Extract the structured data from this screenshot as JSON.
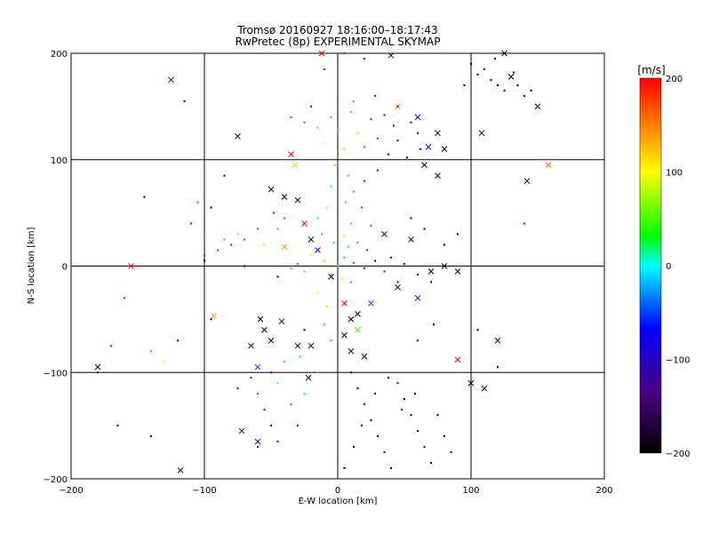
{
  "chart_data": {
    "type": "scatter",
    "title": "Tromsø 20160927 18:16:00–18:17:43",
    "subtitle": "RwPretec (8p) EXPERIMENTAL SKYMAP",
    "xlabel": "E-W location [km]",
    "ylabel": "N-S location [km]",
    "xlim": [
      -200,
      200
    ],
    "ylim": [
      -200,
      200
    ],
    "xticks": [
      -200,
      -100,
      0,
      100,
      200
    ],
    "yticks": [
      -200,
      -100,
      0,
      100,
      200
    ],
    "grid": true,
    "colorbar": {
      "label": "[m/s]",
      "range": [
        -200,
        200
      ],
      "ticks": [
        200,
        100,
        0,
        -100,
        -200
      ],
      "colormap": [
        "#000000",
        "#4b0082",
        "#0000ff",
        "#00ffff",
        "#00ff00",
        "#ffff00",
        "#ff0000"
      ]
    },
    "markers": {
      "large": "x",
      "small": "dot"
    },
    "series": [
      {
        "marker": "x",
        "points": [
          [
            -125,
            175,
            -70
          ],
          [
            -155,
            0,
            200
          ],
          [
            -180,
            -95,
            -200
          ],
          [
            -118,
            -192,
            -200
          ],
          [
            -93,
            -47,
            140
          ],
          [
            -75,
            122,
            -200
          ],
          [
            -50,
            72,
            -200
          ],
          [
            -40,
            65,
            -200
          ],
          [
            -30,
            62,
            -200
          ],
          [
            -35,
            105,
            200
          ],
          [
            -32,
            95,
            80
          ],
          [
            -25,
            40,
            200
          ],
          [
            -55,
            -60,
            -200
          ],
          [
            -60,
            -95,
            -50
          ],
          [
            -65,
            -75,
            -200
          ],
          [
            -50,
            -70,
            -200
          ],
          [
            -42,
            -52,
            -150
          ],
          [
            -30,
            -75,
            -200
          ],
          [
            -22,
            -105,
            -200
          ],
          [
            -72,
            -155,
            -150
          ],
          [
            -60,
            -165,
            -120
          ],
          [
            -12,
            200,
            200
          ],
          [
            40,
            198,
            -150
          ],
          [
            45,
            150,
            140
          ],
          [
            60,
            140,
            -100
          ],
          [
            68,
            112,
            -100
          ],
          [
            75,
            125,
            -200
          ],
          [
            80,
            110,
            -200
          ],
          [
            65,
            95,
            -200
          ],
          [
            75,
            85,
            -200
          ],
          [
            108,
            125,
            -200
          ],
          [
            125,
            200,
            -200
          ],
          [
            130,
            178,
            -200
          ],
          [
            150,
            150,
            -200
          ],
          [
            142,
            80,
            -200
          ],
          [
            158,
            95,
            160
          ],
          [
            -20,
            25,
            -200
          ],
          [
            -15,
            15,
            -100
          ],
          [
            -5,
            -10,
            -200
          ],
          [
            5,
            -35,
            200
          ],
          [
            10,
            -50,
            -200
          ],
          [
            15,
            -45,
            -200
          ],
          [
            25,
            -35,
            -50
          ],
          [
            45,
            -20,
            -200
          ],
          [
            60,
            -30,
            -80
          ],
          [
            80,
            0,
            -200
          ],
          [
            90,
            -5,
            -200
          ],
          [
            120,
            -70,
            -200
          ],
          [
            100,
            -110,
            -200
          ],
          [
            110,
            -115,
            -200
          ],
          [
            90,
            -88,
            200
          ],
          [
            20,
            -85,
            -200
          ],
          [
            10,
            -80,
            -200
          ],
          [
            5,
            -65,
            -200
          ],
          [
            15,
            -60,
            50
          ],
          [
            35,
            30,
            -200
          ],
          [
            55,
            25,
            -200
          ],
          [
            70,
            -5,
            -200
          ],
          [
            -20,
            -75,
            -200
          ],
          [
            -58,
            -50,
            -200
          ],
          [
            -40,
            18,
            140
          ]
        ]
      },
      {
        "marker": "dot",
        "points": [
          [
            -5,
            140,
            -20
          ],
          [
            10,
            145,
            20
          ],
          [
            25,
            138,
            -60
          ],
          [
            35,
            142,
            -90
          ],
          [
            45,
            150,
            -120
          ],
          [
            55,
            135,
            -150
          ],
          [
            -25,
            135,
            -30
          ],
          [
            -15,
            130,
            0
          ],
          [
            0,
            128,
            40
          ],
          [
            15,
            125,
            70
          ],
          [
            30,
            120,
            -40
          ],
          [
            45,
            118,
            -80
          ],
          [
            60,
            125,
            -130
          ],
          [
            -10,
            115,
            100
          ],
          [
            5,
            110,
            130
          ],
          [
            20,
            112,
            180
          ],
          [
            38,
            105,
            -170
          ],
          [
            52,
            102,
            -180
          ],
          [
            -20,
            150,
            -50
          ],
          [
            -35,
            140,
            -40
          ],
          [
            12,
            155,
            150
          ],
          [
            28,
            160,
            -60
          ],
          [
            42,
            132,
            -110
          ],
          [
            62,
            110,
            -100
          ],
          [
            -2,
            95,
            60
          ],
          [
            8,
            85,
            40
          ],
          [
            -5,
            75,
            20
          ],
          [
            12,
            70,
            -20
          ],
          [
            20,
            80,
            -60
          ],
          [
            30,
            90,
            -80
          ],
          [
            -8,
            55,
            80
          ],
          [
            6,
            60,
            20
          ],
          [
            18,
            55,
            -40
          ],
          [
            -15,
            45,
            40
          ],
          [
            10,
            40,
            0
          ],
          [
            25,
            38,
            -30
          ],
          [
            -12,
            30,
            160
          ],
          [
            5,
            28,
            110
          ],
          [
            -20,
            10,
            100
          ],
          [
            -10,
            5,
            60
          ],
          [
            0,
            0,
            20
          ],
          [
            5,
            8,
            -20
          ],
          [
            12,
            3,
            -40
          ],
          [
            20,
            -2,
            -60
          ],
          [
            28,
            5,
            -100
          ],
          [
            35,
            -5,
            -120
          ],
          [
            -5,
            -8,
            40
          ],
          [
            3,
            -12,
            80
          ],
          [
            10,
            -15,
            -20
          ],
          [
            -25,
            -5,
            140
          ],
          [
            -30,
            2,
            180
          ],
          [
            -35,
            -2,
            160
          ],
          [
            8,
            18,
            -10
          ],
          [
            15,
            22,
            -30
          ],
          [
            -3,
            22,
            30
          ],
          [
            22,
            15,
            -50
          ],
          [
            40,
            8,
            -140
          ],
          [
            50,
            2,
            -170
          ],
          [
            60,
            -8,
            -200
          ],
          [
            70,
            -15,
            -200
          ],
          [
            45,
            -15,
            -120
          ],
          [
            -15,
            -25,
            110
          ],
          [
            -8,
            -38,
            120
          ],
          [
            -10,
            -55,
            160
          ],
          [
            -5,
            -70,
            170
          ],
          [
            -28,
            -85,
            20
          ],
          [
            -40,
            -90,
            -10
          ],
          [
            -50,
            -100,
            -60
          ],
          [
            -65,
            -105,
            -100
          ],
          [
            -75,
            -115,
            -150
          ],
          [
            -60,
            -120,
            -40
          ],
          [
            -45,
            -110,
            0
          ],
          [
            -55,
            -135,
            -80
          ],
          [
            -50,
            -150,
            -170
          ],
          [
            -60,
            -170,
            -170
          ],
          [
            -35,
            -130,
            -40
          ],
          [
            -25,
            -120,
            -10
          ],
          [
            -15,
            -100,
            20
          ],
          [
            -30,
            -150,
            -110
          ],
          [
            -45,
            -165,
            -150
          ],
          [
            10,
            -100,
            -200
          ],
          [
            15,
            -115,
            -200
          ],
          [
            20,
            -130,
            -200
          ],
          [
            25,
            -145,
            -200
          ],
          [
            30,
            -160,
            -200
          ],
          [
            35,
            -175,
            -200
          ],
          [
            40,
            -190,
            -200
          ],
          [
            45,
            -110,
            -200
          ],
          [
            50,
            -125,
            -200
          ],
          [
            55,
            -140,
            -200
          ],
          [
            60,
            -155,
            -200
          ],
          [
            65,
            -170,
            -200
          ],
          [
            70,
            -185,
            -200
          ],
          [
            5,
            -190,
            -200
          ],
          [
            12,
            -170,
            -200
          ],
          [
            18,
            -150,
            -200
          ],
          [
            28,
            -120,
            -200
          ],
          [
            38,
            -105,
            -200
          ],
          [
            48,
            -135,
            -200
          ],
          [
            58,
            -120,
            -200
          ],
          [
            75,
            -140,
            -200
          ],
          [
            80,
            -160,
            -200
          ],
          [
            85,
            -175,
            -200
          ],
          [
            100,
            190,
            -200
          ],
          [
            110,
            185,
            -200
          ],
          [
            115,
            175,
            -200
          ],
          [
            120,
            170,
            -200
          ],
          [
            125,
            165,
            -200
          ],
          [
            135,
            170,
            -200
          ],
          [
            140,
            160,
            -200
          ],
          [
            145,
            165,
            -200
          ],
          [
            105,
            180,
            -200
          ],
          [
            118,
            195,
            -200
          ],
          [
            132,
            182,
            -200
          ],
          [
            95,
            170,
            -200
          ],
          [
            -70,
            25,
            180
          ],
          [
            -80,
            20,
            200
          ],
          [
            -90,
            15,
            180
          ],
          [
            -100,
            10,
            200
          ],
          [
            -85,
            25,
            160
          ],
          [
            -75,
            30,
            140
          ],
          [
            -60,
            35,
            180
          ],
          [
            -55,
            20,
            120
          ],
          [
            -45,
            35,
            160
          ],
          [
            -40,
            45,
            180
          ],
          [
            -48,
            50,
            200
          ],
          [
            -105,
            60,
            180
          ],
          [
            -110,
            40,
            200
          ],
          [
            -150,
            0,
            200
          ],
          [
            -160,
            -30,
            200
          ],
          [
            -170,
            -75,
            200
          ],
          [
            -140,
            -80,
            160
          ],
          [
            -130,
            -90,
            100
          ],
          [
            -100,
            5,
            -200
          ],
          [
            -95,
            -50,
            -200
          ],
          [
            -180,
            -100,
            -200
          ],
          [
            -165,
            -150,
            -200
          ],
          [
            -115,
            155,
            -200
          ],
          [
            -145,
            65,
            -200
          ],
          [
            -95,
            55,
            -200
          ],
          [
            140,
            40,
            200
          ],
          [
            105,
            -60,
            -200
          ],
          [
            120,
            -95,
            -200
          ],
          [
            90,
            30,
            -200
          ],
          [
            80,
            20,
            -200
          ],
          [
            65,
            35,
            -200
          ],
          [
            55,
            45,
            -200
          ],
          [
            72,
            -55,
            -200
          ],
          [
            60,
            -70,
            -200
          ],
          [
            -25,
            -60,
            -200
          ],
          [
            -45,
            -10,
            -200
          ],
          [
            -70,
            0,
            -200
          ],
          [
            -10,
            185,
            200
          ],
          [
            5,
            200,
            200
          ],
          [
            20,
            195,
            -200
          ],
          [
            -120,
            -70,
            -200
          ],
          [
            -140,
            -160,
            -200
          ],
          [
            -85,
            85,
            -200
          ]
        ]
      }
    ]
  }
}
